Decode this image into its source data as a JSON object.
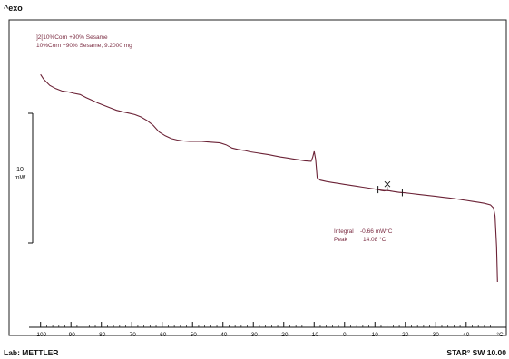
{
  "header": {
    "exo_label": "^exo"
  },
  "sample": {
    "line1": "]2[10%Corn +90% Sesame",
    "line2": "10%Corn +90% Sesame, 9.2000 mg"
  },
  "scale_bar": {
    "value": "10",
    "unit": "mW"
  },
  "results": {
    "integral_label": "Integral",
    "integral_value": "-0.66 mW°C",
    "peak_label": "Peak",
    "peak_value": "14.08 °C"
  },
  "footer": {
    "lab": "Lab: METTLER",
    "software": "STAR° SW 10.00"
  },
  "colors": {
    "curve": "#6b2236",
    "text": "#7a2a40",
    "frame": "#111111"
  },
  "chart_data": {
    "type": "line",
    "title": "",
    "xlabel": "°C",
    "ylabel": "",
    "xlim": [
      -102,
      52
    ],
    "ylim": [
      -100,
      25
    ],
    "x_ticks": [
      -100,
      -90,
      -80,
      -70,
      -60,
      -50,
      -40,
      -30,
      -20,
      -10,
      0,
      10,
      20,
      30,
      40
    ],
    "x_tick_labels": [
      "-100",
      "-90",
      "-80",
      "-70",
      "-60",
      "-50",
      "-40",
      "-30",
      "-20",
      "-10",
      "0",
      "10",
      "20",
      "30",
      "40"
    ],
    "unit_label": "°C",
    "grid": false,
    "series": [
      {
        "x": [
          -100,
          -99,
          -97,
          -95,
          -93,
          -91,
          -89,
          -87,
          -85,
          -83,
          -81,
          -79,
          -77,
          -75,
          -73,
          -71,
          -69,
          -67,
          -65,
          -63,
          -61,
          -59,
          -57,
          -55,
          -53,
          -51,
          -49,
          -47,
          -45,
          -43,
          -41,
          -39,
          -37,
          -35,
          -33,
          -31,
          -29,
          -27,
          -25,
          -23,
          -21,
          -19,
          -17,
          -15,
          -13,
          -11,
          -10.5,
          -10,
          -9.5,
          -9,
          -8,
          -6,
          -4,
          -2,
          0,
          2,
          4,
          6,
          8,
          10,
          11,
          12,
          13,
          14,
          15,
          16,
          17,
          18,
          20,
          22,
          24,
          26,
          28,
          30,
          32,
          34,
          36,
          38,
          40,
          42,
          44,
          46,
          48,
          49,
          49.5,
          50,
          50.3
        ],
        "y": [
          3,
          1,
          -1.6,
          -3,
          -4,
          -4.4,
          -5,
          -5.5,
          -6.8,
          -8,
          -9.2,
          -10.2,
          -11.2,
          -12.2,
          -12.8,
          -13.4,
          -14,
          -15,
          -16.5,
          -18.5,
          -21.4,
          -23,
          -24.2,
          -24.8,
          -25.2,
          -25.4,
          -25.4,
          -25.4,
          -25.6,
          -25.8,
          -26,
          -26.8,
          -28.2,
          -28.8,
          -29.2,
          -29.8,
          -30.2,
          -30.6,
          -31,
          -31.5,
          -32,
          -32.4,
          -32.8,
          -33.2,
          -33.6,
          -33.8,
          -32.2,
          -29.6,
          -33,
          -40.8,
          -41.8,
          -42.4,
          -42.8,
          -43.2,
          -43.6,
          -44,
          -44.4,
          -44.8,
          -45.2,
          -45.6,
          -45.8,
          -46.2,
          -46.4,
          -46.2,
          -46.4,
          -46.6,
          -46.8,
          -47,
          -47.2,
          -47.5,
          -47.8,
          -48.1,
          -48.4,
          -48.7,
          -49,
          -49.3,
          -49.6,
          -50,
          -50.4,
          -50.8,
          -51.2,
          -51.6,
          -52.3,
          -53.6,
          -57,
          -70,
          -85
        ]
      }
    ],
    "integration": {
      "start_x": 11,
      "end_x": 19,
      "peak_x": 14.08,
      "integral": -0.66,
      "peak": 14.08
    },
    "scale_bar_mw": 10
  }
}
